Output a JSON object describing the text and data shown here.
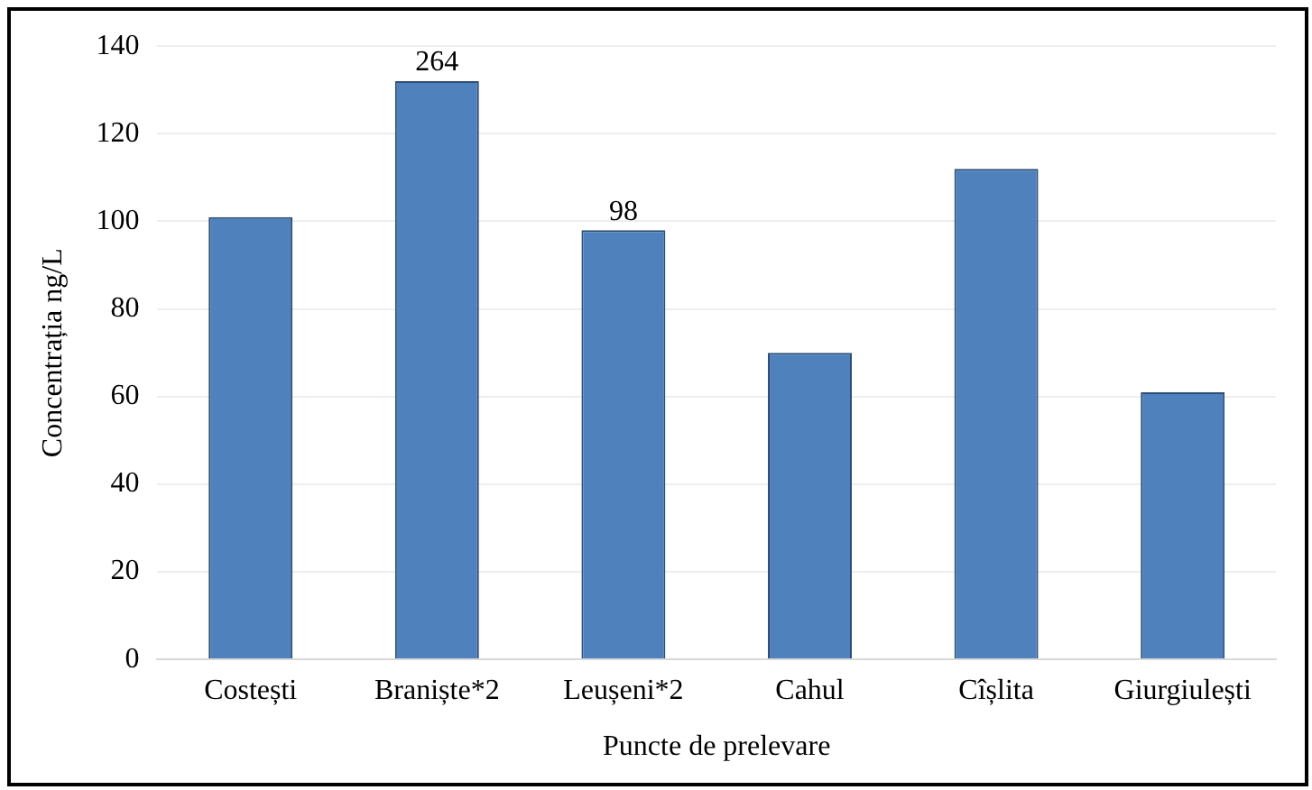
{
  "chart_data": {
    "type": "bar",
    "xlabel": "Puncte de prelevare",
    "ylabel": "Concentrația ng/L",
    "categories": [
      "Costești",
      "Braniște*2",
      "Leușeni*2",
      "Cahul",
      "Cîșlita",
      "Giurgiulești"
    ],
    "values": [
      101,
      132,
      98,
      70,
      112,
      61
    ],
    "color": "#4f81bd",
    "ylim": [
      0,
      140
    ],
    "yticks": [
      0,
      20,
      40,
      60,
      80,
      100,
      120,
      140
    ],
    "grid": "y",
    "annotations": [
      {
        "text": "264",
        "x": "Braniște*2",
        "y": 132
      },
      {
        "text": "98",
        "x": "Leușeni*2",
        "y": 98
      }
    ]
  }
}
